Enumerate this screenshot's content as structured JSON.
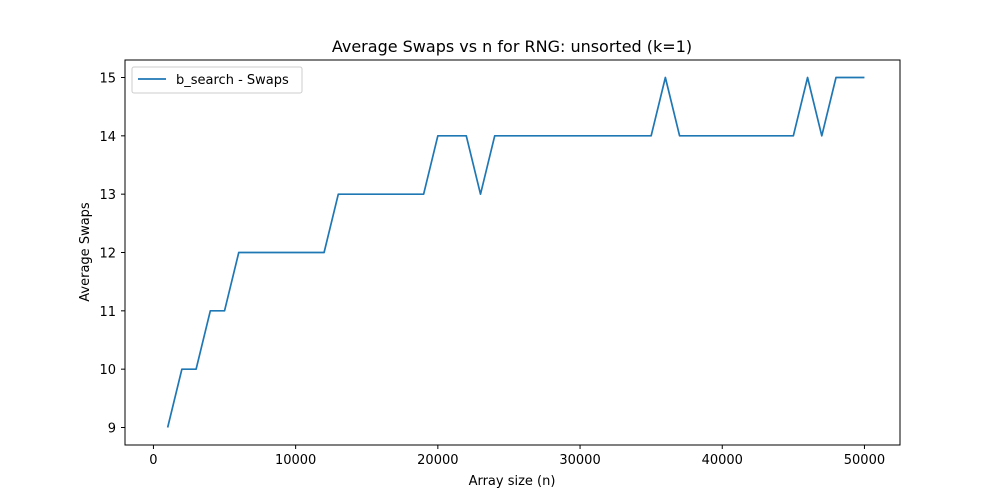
{
  "chart_data": {
    "type": "line",
    "title": "Average Swaps vs n for RNG: unsorted (k=1)",
    "xlabel": "Array size (n)",
    "ylabel": "Average Swaps",
    "xlim": [
      -2000,
      52500
    ],
    "ylim": [
      8.7,
      15.3
    ],
    "xticks": [
      0,
      10000,
      20000,
      30000,
      40000,
      50000
    ],
    "xtick_labels": [
      "0",
      "10000",
      "20000",
      "30000",
      "40000",
      "50000"
    ],
    "yticks": [
      9,
      10,
      11,
      12,
      13,
      14,
      15
    ],
    "ytick_labels": [
      "9",
      "10",
      "11",
      "12",
      13,
      "14",
      "15"
    ],
    "grid": false,
    "legend_position": "upper-left",
    "series": [
      {
        "name": "b_search - Swaps",
        "color": "#1f77b4",
        "x": [
          1000,
          2000,
          3000,
          4000,
          5000,
          6000,
          7000,
          8000,
          9000,
          10000,
          11000,
          12000,
          13000,
          14000,
          15000,
          16000,
          17000,
          18000,
          19000,
          20000,
          21000,
          22000,
          23000,
          24000,
          25000,
          26000,
          27000,
          28000,
          29000,
          30000,
          31000,
          32000,
          33000,
          34000,
          35000,
          36000,
          37000,
          38000,
          39000,
          40000,
          41000,
          42000,
          43000,
          44000,
          45000,
          46000,
          47000,
          48000,
          49000,
          50000
        ],
        "y": [
          9,
          10,
          10,
          11,
          11,
          12,
          12,
          12,
          12,
          12,
          12,
          12,
          13,
          13,
          13,
          13,
          13,
          13,
          13,
          14,
          14,
          14,
          13,
          14,
          14,
          14,
          14,
          14,
          14,
          14,
          14,
          14,
          14,
          14,
          14,
          15,
          14,
          14,
          14,
          14,
          14,
          14,
          14,
          14,
          14,
          15,
          14,
          15,
          15,
          15
        ]
      }
    ]
  }
}
